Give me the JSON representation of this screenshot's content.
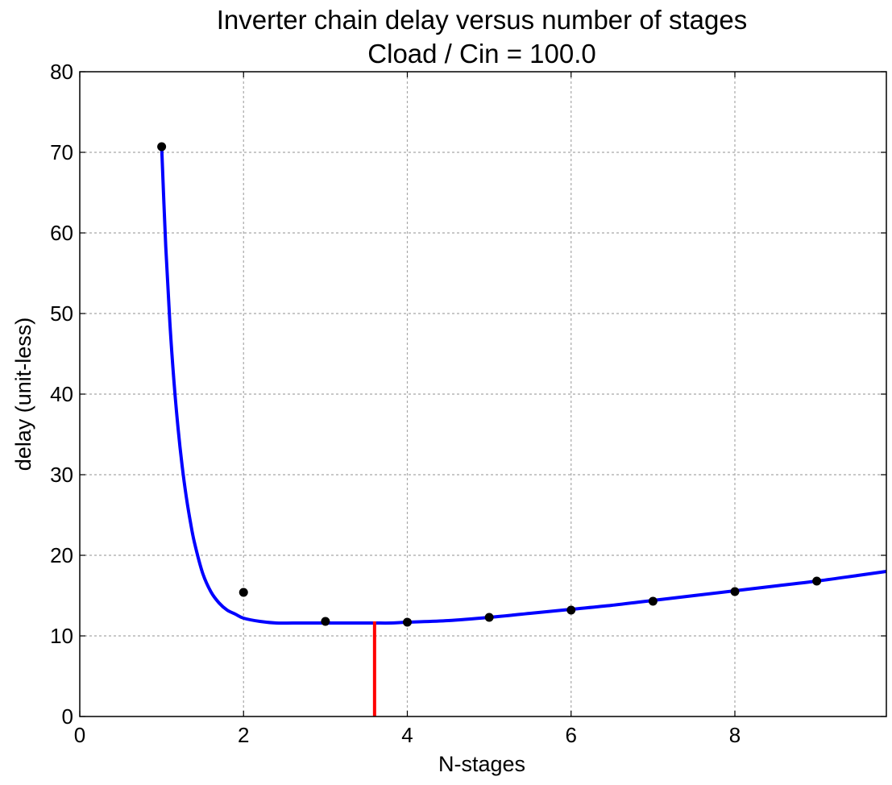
{
  "chart_data": {
    "type": "line",
    "title": "Inverter chain delay versus number of stages",
    "subtitle": "Cload / Cin = 100.0",
    "xlabel": "N-stages",
    "ylabel": "delay (unit-less)",
    "xlim": [
      0,
      9.85
    ],
    "ylim": [
      0,
      80
    ],
    "xticks": [
      0,
      2,
      4,
      6,
      8
    ],
    "xtick_labels": [
      "0",
      "2",
      "4",
      "6",
      "8"
    ],
    "yticks": [
      0,
      10,
      20,
      30,
      40,
      50,
      60,
      70,
      80
    ],
    "ytick_labels": [
      "0",
      "10",
      "20",
      "30",
      "40",
      "50",
      "60",
      "70",
      "80"
    ],
    "grid": true,
    "series": [
      {
        "kind": "curve",
        "color": "#0000ff",
        "x": [
          1.0,
          1.05,
          1.1,
          1.15,
          1.2,
          1.25,
          1.3,
          1.35,
          1.4,
          1.5,
          1.6,
          1.7,
          1.8,
          1.9,
          2.0,
          2.2,
          2.4,
          2.6,
          2.8,
          3.0,
          3.2,
          3.4,
          3.6,
          3.8,
          4.0,
          4.5,
          5.0,
          5.5,
          6.0,
          6.5,
          7.0,
          7.5,
          8.0,
          8.5,
          9.0,
          9.5,
          9.85
        ],
        "y": [
          70.7,
          58.3,
          48.9,
          41.6,
          35.8,
          31.1,
          27.3,
          24.2,
          21.6,
          17.8,
          15.5,
          14.1,
          13.2,
          12.7,
          12.2,
          11.8,
          11.6,
          11.6,
          11.6,
          11.6,
          11.6,
          11.6,
          11.6,
          11.6,
          11.7,
          11.9,
          12.3,
          12.8,
          13.3,
          13.8,
          14.4,
          15.0,
          15.6,
          16.2,
          16.8,
          17.5,
          18.0
        ]
      },
      {
        "kind": "points",
        "color": "#000000",
        "x": [
          1,
          2,
          3,
          4,
          5,
          6,
          7,
          8,
          9
        ],
        "y": [
          70.7,
          15.4,
          11.8,
          11.7,
          12.3,
          13.2,
          14.3,
          15.5,
          16.8
        ]
      },
      {
        "kind": "vline",
        "color": "#ff0000",
        "x": 3.6,
        "y": [
          0,
          11.8
        ]
      }
    ]
  }
}
